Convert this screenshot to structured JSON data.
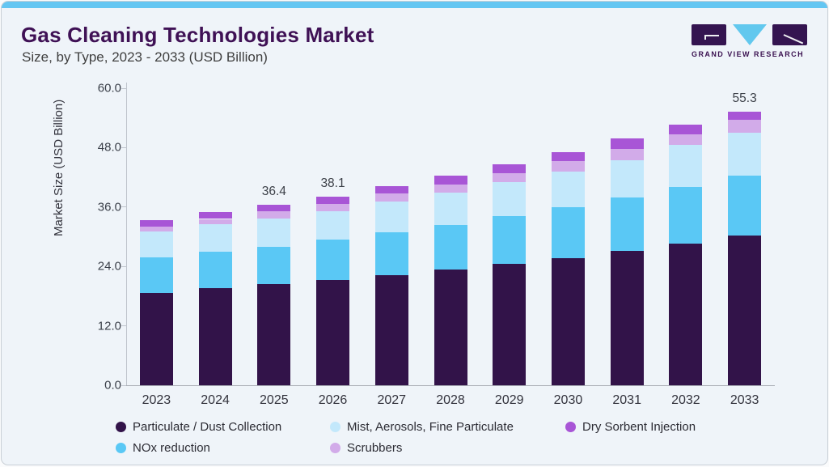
{
  "page": {
    "title": "Gas Cleaning Technologies Market",
    "subtitle": "Size, by Type, 2023 - 2033 (USD Billion)"
  },
  "brand": {
    "name": "GRAND VIEW RESEARCH"
  },
  "colors": {
    "accent_strip": "#64c6f2",
    "card_bg": "#eff4f9",
    "card_border": "#c9cfd6",
    "title_text": "#3f1155",
    "subtitle_text": "#3f3f3f",
    "axis_text": "#3a3f49",
    "axis_line": "#bfc4cc",
    "value_label_text": "#3c4048",
    "logo_dark": "#341450",
    "logo_blue": "#62c8ee"
  },
  "chart_data": {
    "type": "bar",
    "stacked": true,
    "title": "Gas Cleaning Technologies Market Size, by Type, 2023 - 2033 (USD Billion)",
    "xlabel": "",
    "ylabel": "Market Size (USD Billion)",
    "ylim": [
      0,
      60
    ],
    "yticks": [
      0,
      12,
      24,
      36,
      48,
      60
    ],
    "ytick_labels": [
      "0.0",
      "12.0",
      "24.0",
      "36.0",
      "48.0",
      "60.0"
    ],
    "grid": false,
    "legend_position": "bottom",
    "categories": [
      "2023",
      "2024",
      "2025",
      "2026",
      "2027",
      "2028",
      "2029",
      "2030",
      "2031",
      "2032",
      "2033"
    ],
    "series": [
      {
        "name": "Particulate / Dust Collection",
        "color": "#321349",
        "values": [
          18.7,
          19.6,
          20.4,
          21.3,
          22.3,
          23.4,
          24.5,
          25.7,
          27.1,
          28.6,
          30.2
        ]
      },
      {
        "name": "NOx reduction",
        "color": "#5ac8f5",
        "values": [
          7.1,
          7.3,
          7.6,
          8.1,
          8.6,
          9.0,
          9.6,
          10.2,
          10.8,
          11.4,
          12.1
        ]
      },
      {
        "name": "Mist, Aerosols, Fine Particulate",
        "color": "#c3e8fb",
        "values": [
          5.2,
          5.6,
          5.7,
          5.8,
          6.2,
          6.5,
          7.0,
          7.3,
          7.6,
          8.6,
          8.7
        ]
      },
      {
        "name": "Scrubbers",
        "color": "#d2abe9",
        "values": [
          1.0,
          1.1,
          1.4,
          1.5,
          1.7,
          1.7,
          1.8,
          2.1,
          2.3,
          2.1,
          2.6
        ]
      },
      {
        "name": "Dry Sorbent Injection",
        "color": "#a855d6",
        "values": [
          1.4,
          1.4,
          1.3,
          1.4,
          1.4,
          1.7,
          1.8,
          1.8,
          2.1,
          2.0,
          1.7
        ]
      }
    ],
    "totals": [
      33.4,
      35.0,
      36.4,
      38.1,
      40.2,
      42.3,
      44.7,
      47.1,
      49.9,
      52.7,
      55.3
    ],
    "bar_total_labels": [
      {
        "category": "2025",
        "text": "36.4"
      },
      {
        "category": "2026",
        "text": "38.1"
      },
      {
        "category": "2033",
        "text": "55.3"
      }
    ],
    "legend_order": [
      "Particulate / Dust Collection",
      "Mist, Aerosols, Fine Particulate",
      "Dry Sorbent Injection",
      "NOx reduction",
      "Scrubbers"
    ]
  }
}
